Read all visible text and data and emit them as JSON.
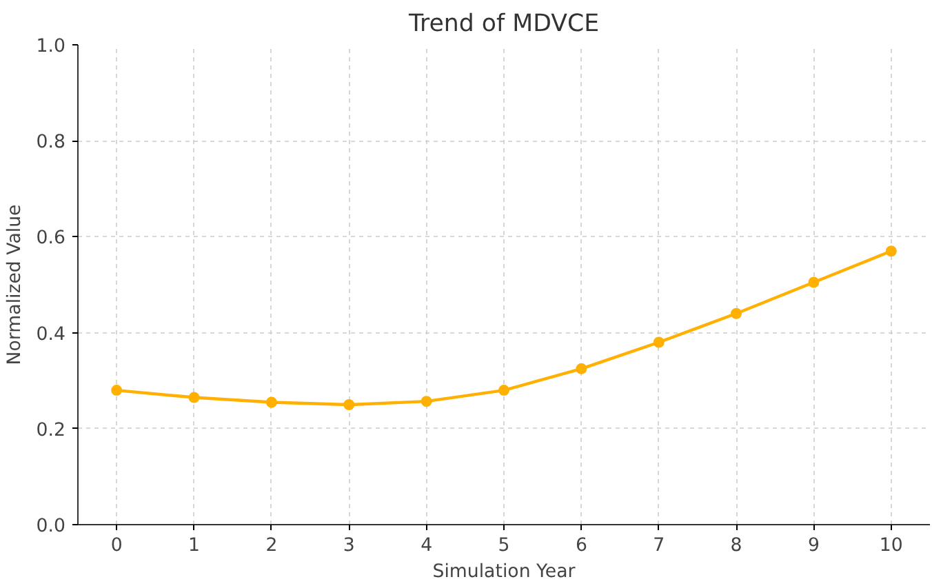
{
  "chart_data": {
    "type": "line",
    "title": "Trend of MDVCE",
    "xlabel": "Simulation Year",
    "ylabel": "Normalized Value",
    "x": [
      0,
      1,
      2,
      3,
      4,
      5,
      6,
      7,
      8,
      9,
      10
    ],
    "series": [
      {
        "color": "#ffb000",
        "values": [
          0.28,
          0.265,
          0.255,
          0.25,
          0.257,
          0.28,
          0.325,
          0.38,
          0.44,
          0.505,
          0.57
        ]
      }
    ],
    "xlim": [
      -0.5,
      10.5
    ],
    "xticks": [
      0,
      1,
      2,
      3,
      4,
      5,
      6,
      7,
      8,
      9,
      10
    ],
    "ylim": [
      0,
      1
    ],
    "yticks": [
      {
        "value": 0,
        "label": "0.0"
      },
      {
        "value": 0.2,
        "label": "0.2"
      },
      {
        "value": 0.4,
        "label": "0.4"
      },
      {
        "value": 0.6,
        "label": "0.6"
      },
      {
        "value": 0.8,
        "label": "0.8"
      },
      {
        "value": 1,
        "label": "1.0"
      }
    ],
    "grid": true,
    "marker": "circle",
    "line_style": "solid"
  }
}
